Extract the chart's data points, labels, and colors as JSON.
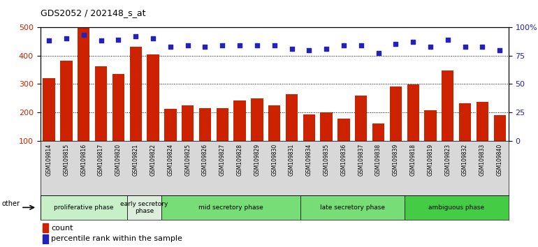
{
  "title": "GDS2052 / 202148_s_at",
  "samples": [
    "GSM109814",
    "GSM109815",
    "GSM109816",
    "GSM109817",
    "GSM109820",
    "GSM109821",
    "GSM109822",
    "GSM109824",
    "GSM109825",
    "GSM109826",
    "GSM109827",
    "GSM109828",
    "GSM109829",
    "GSM109830",
    "GSM109831",
    "GSM109834",
    "GSM109835",
    "GSM109836",
    "GSM109837",
    "GSM109838",
    "GSM109839",
    "GSM109818",
    "GSM109819",
    "GSM109823",
    "GSM109832",
    "GSM109833",
    "GSM109840"
  ],
  "counts": [
    320,
    382,
    497,
    363,
    335,
    432,
    405,
    213,
    225,
    215,
    215,
    242,
    250,
    225,
    265,
    193,
    200,
    178,
    258,
    160,
    292,
    298,
    208,
    347,
    232,
    237,
    190
  ],
  "percentiles": [
    88,
    90,
    93,
    88,
    89,
    92,
    90,
    83,
    84,
    83,
    84,
    84,
    84,
    84,
    81,
    80,
    81,
    84,
    84,
    77,
    85,
    87,
    83,
    89,
    83,
    83,
    80
  ],
  "phases": [
    {
      "label": "proliferative phase",
      "start": 0,
      "end": 5,
      "color": "#c8f0c8"
    },
    {
      "label": "early secretory\nphase",
      "start": 5,
      "end": 7,
      "color": "#ddeedd"
    },
    {
      "label": "mid secretory phase",
      "start": 7,
      "end": 15,
      "color": "#77dd77"
    },
    {
      "label": "late secretory phase",
      "start": 15,
      "end": 21,
      "color": "#77dd77"
    },
    {
      "label": "ambiguous phase",
      "start": 21,
      "end": 27,
      "color": "#44cc44"
    }
  ],
  "bar_color": "#cc2200",
  "dot_color": "#2222bb",
  "ylim_left": [
    100,
    500
  ],
  "ylim_right": [
    0,
    100
  ],
  "yticks_left": [
    100,
    200,
    300,
    400,
    500
  ],
  "yticks_right": [
    0,
    25,
    50,
    75,
    100
  ],
  "yticklabels_right": [
    "0",
    "25",
    "50",
    "75",
    "100%"
  ],
  "xtick_bg": "#d8d8d8",
  "plot_bg": "#ffffff"
}
